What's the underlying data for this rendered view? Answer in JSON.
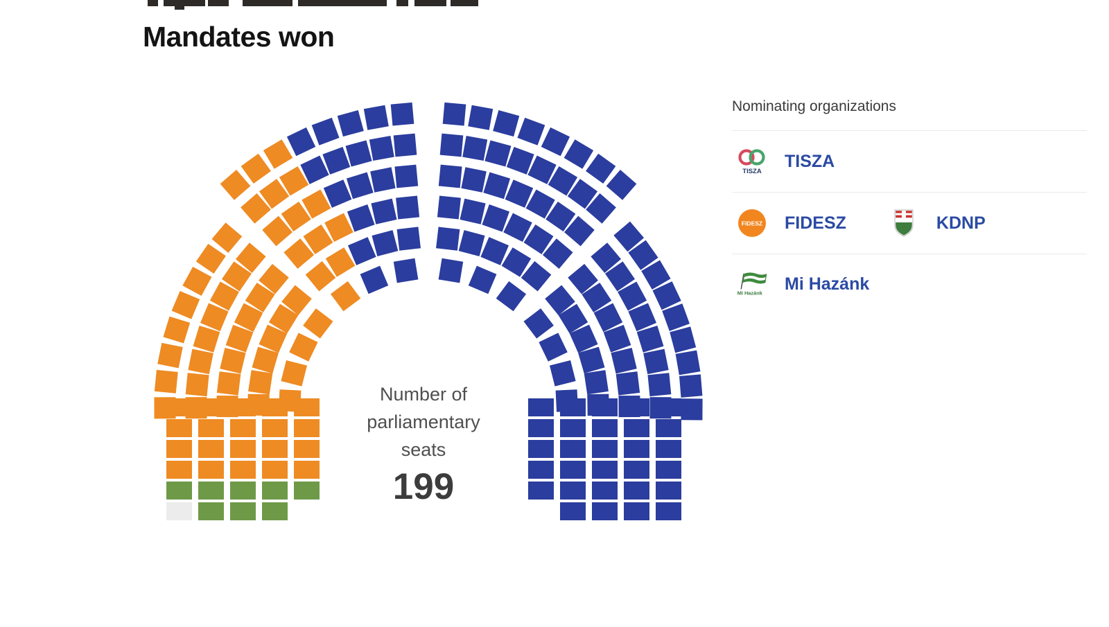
{
  "page": {
    "title": "Mandates won"
  },
  "center_label": {
    "line1": "Number of",
    "line2": "parliamentary",
    "line3": "seats",
    "value": "199"
  },
  "legend": {
    "header": "Nominating organizations",
    "rows": [
      {
        "items": [
          {
            "label": "TISZA",
            "icon": "tisza-logo"
          }
        ]
      },
      {
        "items": [
          {
            "label": "FIDESZ",
            "icon": "fidesz-logo"
          },
          {
            "label": "KDNP",
            "icon": "kdnp-logo"
          }
        ]
      },
      {
        "items": [
          {
            "label": "Mi Hazánk",
            "icon": "mihazank-logo"
          }
        ]
      }
    ]
  },
  "chart_data": {
    "type": "parliament",
    "title": "Mandates won",
    "total_seats": 199,
    "legend_position": "right",
    "series": [
      {
        "name": "Other",
        "seats": 1,
        "color": "#ececec"
      },
      {
        "name": "Mi Hazánk",
        "seats": 8,
        "color": "#6e9a48"
      },
      {
        "name": "FIDESZ-KDNP",
        "seats": 68,
        "color": "#ee8b23"
      },
      {
        "name": "TISZA",
        "seats": 122,
        "color": "#2b3d9e"
      }
    ]
  },
  "colors": {
    "accent_link": "#2b4aa3",
    "divider": "#e9e9e9",
    "title_text": "#141414",
    "center_text": "#4f4f4f",
    "center_value": "#3c3c3c"
  }
}
